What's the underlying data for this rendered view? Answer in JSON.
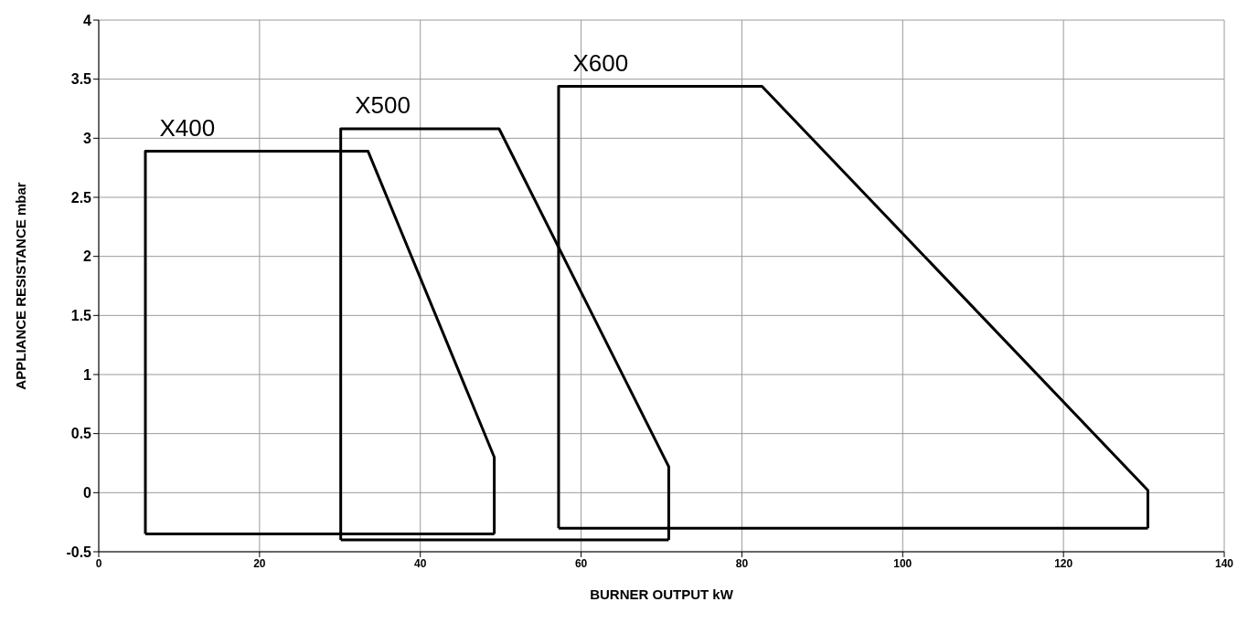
{
  "chart_data": {
    "type": "line",
    "xlabel": "BURNER OUTPUT kW",
    "ylabel": "APPLIANCE RESISTANCE mbar",
    "xlim": [
      0,
      140
    ],
    "xticks": [
      0,
      20,
      40,
      60,
      80,
      100,
      120,
      140
    ],
    "ylim": [
      -0.5,
      4
    ],
    "yticks": [
      -0.5,
      0,
      0.5,
      1,
      1.5,
      2,
      2.5,
      3,
      3.5,
      4
    ],
    "grid": true,
    "marker": "none",
    "line_style": "solid",
    "series": [
      {
        "name": "X400",
        "color": "#000000",
        "x": [
          5.8,
          5.8,
          33.5,
          49.2,
          49.2
        ],
        "values": [
          -0.35,
          2.89,
          2.89,
          0.3,
          -0.35
        ]
      },
      {
        "color": "#000000",
        "x": [
          5.8,
          49.2
        ],
        "values": [
          -0.35,
          -0.35
        ]
      },
      {
        "name": "X500",
        "color": "#000000",
        "x": [
          30.1,
          30.1,
          49.8,
          70.9,
          70.9
        ],
        "values": [
          -0.4,
          3.08,
          3.08,
          0.22,
          -0.4
        ]
      },
      {
        "color": "#000000",
        "x": [
          30.1,
          70.9
        ],
        "values": [
          -0.4,
          -0.4
        ]
      },
      {
        "name": "X600",
        "color": "#000000",
        "x": [
          57.2,
          57.2,
          82.5,
          130.5,
          130.5
        ],
        "values": [
          -0.3,
          3.44,
          3.44,
          0.02,
          -0.3
        ]
      },
      {
        "color": "#000000",
        "x": [
          57.2,
          130.5
        ],
        "values": [
          -0.3,
          -0.3
        ]
      }
    ]
  }
}
